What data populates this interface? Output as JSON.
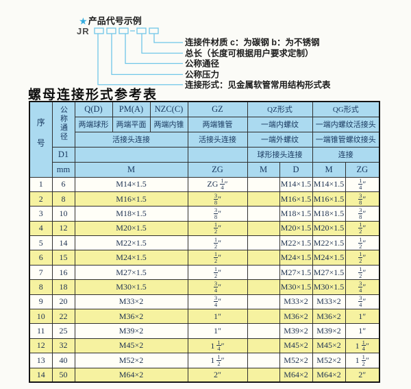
{
  "colors": {
    "accent_blue": "#6ec6e8",
    "star_blue": "#35abdd",
    "header_bg": "#abdaf0",
    "row_alt_bg": "#f6f2a0",
    "header_text": "#17375e"
  },
  "diagram": {
    "star_icon": "★",
    "title": "产品代号示例",
    "prefix": "JR",
    "labels": [
      "连接件材质  c：为碳钢  b：为不锈钢",
      "总长（长度可根据用户要求定制）",
      "公称通径",
      "公称压力",
      "连接形式：见金属软管常用结构形式表"
    ]
  },
  "table": {
    "title": "螺母连接形式参考表",
    "header": {
      "seq": "序号",
      "dn": "公称通径",
      "d1": "D1",
      "mm": "mm",
      "qd": "Q(D)",
      "pma": "PM(A)",
      "nzc": "NZC(C)",
      "qd_sub": "两端球形",
      "pma_sub": "两端平面",
      "nzc_sub": "两端内锥",
      "gz": "GZ",
      "gz_sub": "两端锥管",
      "qz": "QZ形式",
      "qz_sub1": "一端内螺纹",
      "qz_sub2": "一端外螺纹",
      "qz_conn": "球形接头连接",
      "qg": "QG形式",
      "qg_sub1": "一端内螺纹活接头",
      "qg_sub2": "一端锥管螺纹接头",
      "qg_conn": "连接",
      "union_conn": "活接头连接",
      "gz_conn": "活接头连接",
      "m": "M",
      "zg": "ZG",
      "qz_m": "M",
      "qz_d": "D",
      "qg_m": "M",
      "qg_zg": "ZG"
    },
    "rows": [
      [
        "1",
        "6",
        "M14×1.5",
        "ZG 1/4″",
        "",
        "M14×1.5",
        "M14×1.5",
        "1/4″"
      ],
      [
        "2",
        "8",
        "M16×1.5",
        "3/8″",
        "",
        "M16×1.5",
        "M16×1.5",
        "3/8″"
      ],
      [
        "3",
        "10",
        "M18×1.5",
        "3/8″",
        "",
        "M18×1.5",
        "M18×1.5",
        "3/8″"
      ],
      [
        "4",
        "12",
        "M20×1.5",
        "1/2″",
        "",
        "M20×1.5",
        "M20×1.5",
        "1/2″"
      ],
      [
        "5",
        "14",
        "M22×1.5",
        "1/2″",
        "",
        "M22×1.5",
        "M22×1.5",
        "1/2″"
      ],
      [
        "6",
        "15",
        "M24×1.5",
        "1/2″",
        "",
        "M24×1.5",
        "M24×1.5",
        "1/2″"
      ],
      [
        "7",
        "16",
        "M27×1.5",
        "1/2″",
        "",
        "M27×1.5",
        "M27×1.5",
        "1/2″"
      ],
      [
        "8",
        "18",
        "M30×1.5",
        "3/4″",
        "",
        "M30×1.5",
        "M30×1.5",
        "3/4″"
      ],
      [
        "9",
        "20",
        "M33×2",
        "3/4″",
        "",
        "M33×2",
        "M33×2",
        "3/4″"
      ],
      [
        "10",
        "22",
        "M36×2",
        "1″",
        "",
        "M36×2",
        "M36×2",
        "1″"
      ],
      [
        "11",
        "25",
        "M39×2",
        "1″",
        "",
        "M39×2",
        "M39×2",
        "1″"
      ],
      [
        "12",
        "32",
        "M45×2",
        "1 1/4″",
        "",
        "M45×2",
        "M45×2",
        "1 1/4″"
      ],
      [
        "13",
        "40",
        "M52×2",
        "1 1/2″",
        "",
        "M52×2",
        "M52×2",
        "1 1/2″"
      ],
      [
        "14",
        "50",
        "M64×2",
        "2″",
        "",
        "M64×2",
        "M64×2",
        "2″"
      ]
    ]
  }
}
